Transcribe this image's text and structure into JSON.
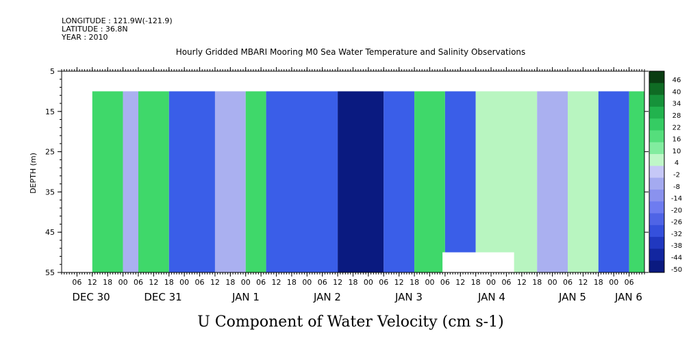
{
  "meta": {
    "longitude": "LONGITUDE : 121.9W(-121.9)",
    "latitude": "LATITUDE : 36.8N",
    "year": "YEAR : 2010"
  },
  "chart_data": {
    "type": "heatmap",
    "title": "Hourly Gridded MBARI Mooring M0 Sea Water Temperature and Salinity Observations",
    "xlabel": "",
    "ylabel": "DEPTH (m)",
    "colorbar_label": "U Component of Water Velocity (cm s-1)",
    "ylim": [
      55,
      5
    ],
    "y_ticks": [
      "5",
      "15",
      "25",
      "35",
      "45",
      "55"
    ],
    "x_hour_ticks": [
      "06",
      "12",
      "18",
      "00",
      "06",
      "12",
      "18",
      "00",
      "06",
      "12",
      "18",
      "00",
      "06",
      "12",
      "18",
      "00",
      "06",
      "12",
      "18",
      "00",
      "06",
      "12",
      "18",
      "00",
      "06",
      "12",
      "18",
      "00",
      "06",
      "12",
      "18",
      "00",
      "06",
      "12",
      "18",
      "00",
      "06"
    ],
    "x_day_labels": [
      "DEC 30",
      "DEC 31",
      "JAN 1",
      "JAN 2",
      "JAN 3",
      "JAN 4",
      "JAN 5",
      "JAN 6"
    ],
    "color_levels": [
      "46",
      "40",
      "34",
      "28",
      "22",
      "16",
      "10",
      "4",
      "-2",
      "-8",
      "-14",
      "-20",
      "-26",
      "-32",
      "-38",
      "-44",
      "-50"
    ],
    "colors": {
      "strong_pos": "#0a5a1a",
      "pos": "#3fd86a",
      "weak_pos": "#b8f5c0",
      "weak_neg": "#aab0f0",
      "neg": "#3a5ee8",
      "strong_neg": "#0a1a80"
    },
    "time_segments": [
      {
        "start_hour": 12,
        "end_hour": 24,
        "value": 12
      },
      {
        "start_hour": 24,
        "end_hour": 30,
        "value": -4
      },
      {
        "start_hour": 30,
        "end_hour": 42,
        "value": 10
      },
      {
        "start_hour": 42,
        "end_hour": 60,
        "value": -12
      },
      {
        "start_hour": 60,
        "end_hour": 72,
        "value": -4
      },
      {
        "start_hour": 72,
        "end_hour": 80,
        "value": 8
      },
      {
        "start_hour": 80,
        "end_hour": 108,
        "value": -28
      },
      {
        "start_hour": 108,
        "end_hour": 126,
        "value": -40
      },
      {
        "start_hour": 126,
        "end_hour": 138,
        "value": -16
      },
      {
        "start_hour": 138,
        "end_hour": 150,
        "value": 10
      },
      {
        "start_hour": 150,
        "end_hour": 162,
        "value": -14
      },
      {
        "start_hour": 162,
        "end_hour": 186,
        "value": 4
      },
      {
        "start_hour": 186,
        "end_hour": 198,
        "value": -4
      },
      {
        "start_hour": 198,
        "end_hour": 210,
        "value": 4
      },
      {
        "start_hour": 210,
        "end_hour": 222,
        "value": -16
      },
      {
        "start_hour": 222,
        "end_hour": 228,
        "value": 8
      }
    ]
  }
}
